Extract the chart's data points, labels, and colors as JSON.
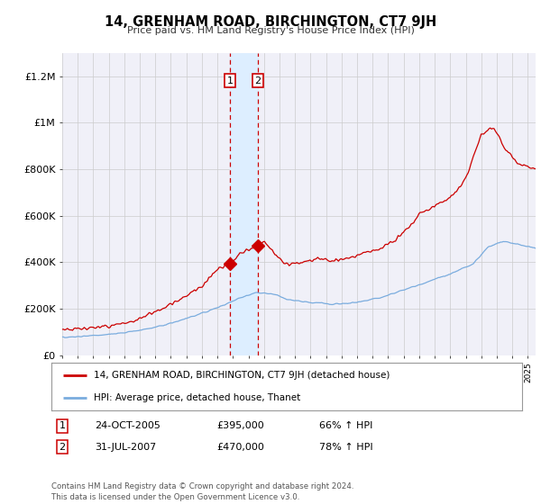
{
  "title": "14, GRENHAM ROAD, BIRCHINGTON, CT7 9JH",
  "subtitle": "Price paid vs. HM Land Registry's House Price Index (HPI)",
  "legend_red": "14, GRENHAM ROAD, BIRCHINGTON, CT7 9JH (detached house)",
  "legend_blue": "HPI: Average price, detached house, Thanet",
  "sale1_label": "1",
  "sale1_date": "24-OCT-2005",
  "sale1_price": "£395,000",
  "sale1_hpi": "66% ↑ HPI",
  "sale1_year": 2005.81,
  "sale1_value": 395000,
  "sale2_label": "2",
  "sale2_date": "31-JUL-2007",
  "sale2_price": "£470,000",
  "sale2_hpi": "78% ↑ HPI",
  "sale2_year": 2007.58,
  "sale2_value": 470000,
  "red_color": "#cc0000",
  "blue_color": "#7aacde",
  "highlight_color": "#ddeeff",
  "grid_color": "#cccccc",
  "background_color": "#ffffff",
  "axis_bg_color": "#f0f0f8",
  "footnote": "Contains HM Land Registry data © Crown copyright and database right 2024.\nThis data is licensed under the Open Government Licence v3.0.",
  "ylim": [
    0,
    1300000
  ],
  "yticks": [
    0,
    200000,
    400000,
    600000,
    800000,
    1000000,
    1200000
  ],
  "ytick_labels": [
    "£0",
    "£200K",
    "£400K",
    "£600K",
    "£800K",
    "£1M",
    "£1.2M"
  ]
}
